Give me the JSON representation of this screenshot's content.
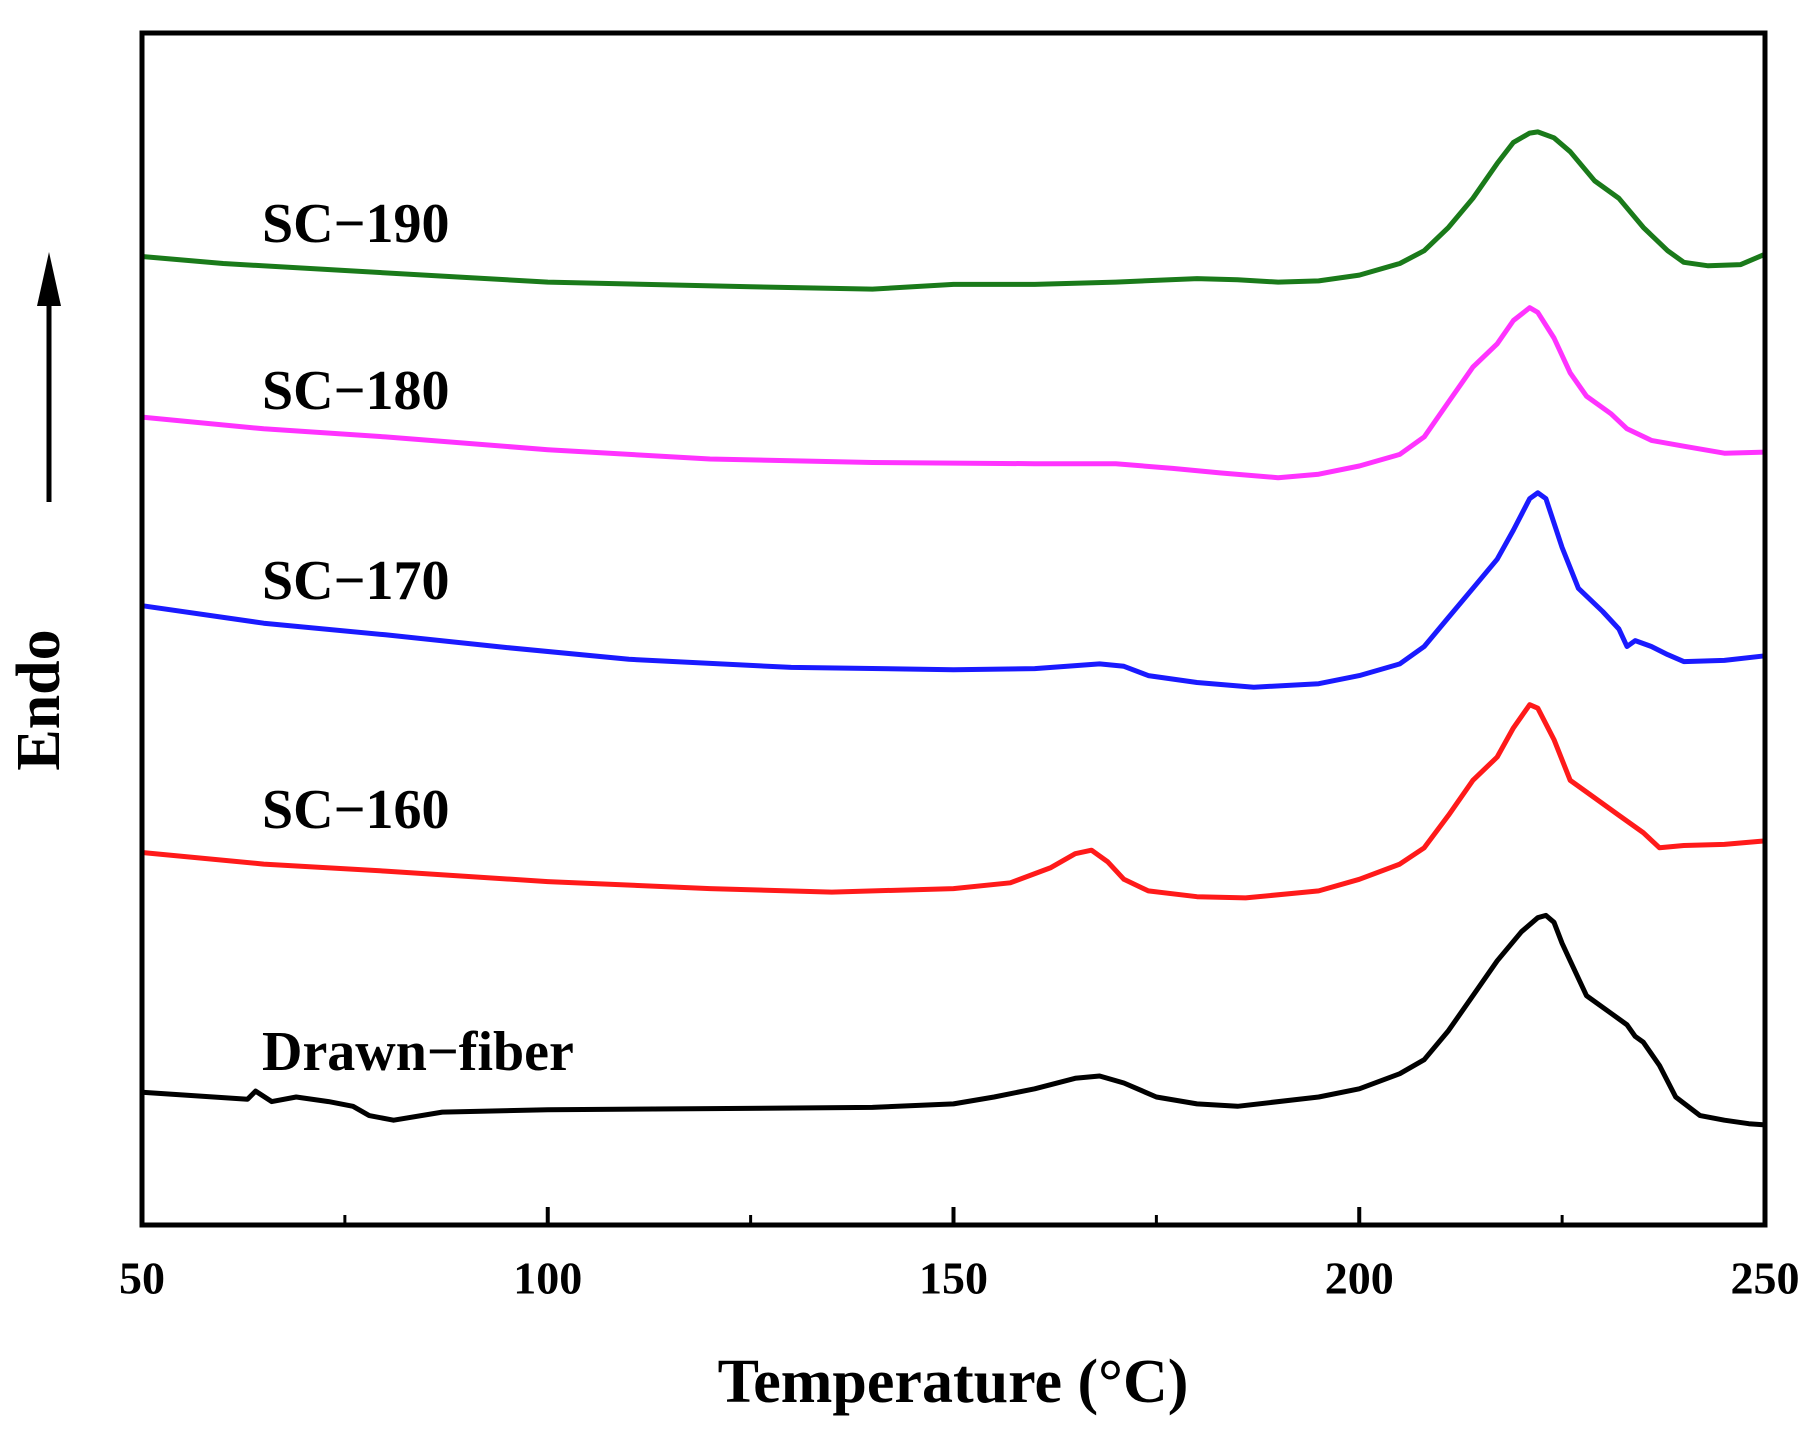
{
  "chart_data": {
    "type": "line",
    "x_label": "Temperature (°C)",
    "y_label": "Endo",
    "xlim": [
      50,
      250
    ],
    "xticks": [
      50,
      100,
      150,
      200,
      250
    ],
    "xminor_ticks": [
      75,
      125,
      175,
      225
    ],
    "ylim": [
      0,
      1024
    ],
    "series": [
      {
        "name": "SC−190",
        "color": "#1a7a1a",
        "x": [
          50,
          60,
          75,
          90,
          100,
          125,
          140,
          150,
          160,
          170,
          180,
          185,
          190,
          195,
          200,
          205,
          208,
          211,
          214,
          217,
          219,
          221,
          222,
          224,
          226,
          229,
          232,
          235,
          238,
          240,
          243,
          247,
          250
        ],
        "values": [
          832,
          826,
          820,
          814,
          810,
          806,
          804,
          808,
          808,
          810,
          813,
          812,
          810,
          811,
          816,
          826,
          837,
          857,
          882,
          912,
          930,
          938,
          939,
          934,
          922,
          897,
          882,
          857,
          837,
          827,
          824,
          825,
          834
        ]
      },
      {
        "name": "SC−180",
        "color": "#ff33ff",
        "x": [
          50,
          65,
          80,
          100,
          120,
          140,
          160,
          170,
          177,
          183,
          190,
          195,
          200,
          205,
          208,
          211,
          214,
          217,
          219,
          221,
          222,
          224,
          226,
          228,
          231,
          233,
          236,
          240,
          245,
          250
        ],
        "values": [
          694,
          684,
          677,
          666,
          658,
          655,
          654,
          654,
          650,
          646,
          642,
          645,
          652,
          662,
          677,
          707,
          737,
          757,
          777,
          788,
          784,
          762,
          732,
          712,
          697,
          684,
          674,
          669,
          663,
          664
        ]
      },
      {
        "name": "SC−170",
        "color": "#1a1aff",
        "x": [
          50,
          65,
          80,
          95,
          110,
          130,
          150,
          160,
          168,
          171,
          174,
          180,
          187,
          195,
          200,
          205,
          208,
          211,
          214,
          217,
          219,
          221,
          222,
          223,
          225,
          227,
          230,
          232,
          233,
          234,
          236,
          238,
          240,
          245,
          250
        ],
        "values": [
          532,
          517,
          507,
          496,
          486,
          479,
          477,
          478,
          482,
          480,
          472,
          466,
          462,
          465,
          472,
          482,
          497,
          522,
          547,
          572,
          597,
          624,
          629,
          624,
          582,
          547,
          527,
          512,
          497,
          502,
          497,
          490,
          484,
          485,
          489
        ]
      },
      {
        "name": "SC−160",
        "color": "#ff1a1a",
        "x": [
          50,
          65,
          80,
          100,
          120,
          135,
          150,
          157,
          162,
          165,
          167,
          169,
          171,
          174,
          180,
          186,
          195,
          200,
          205,
          208,
          211,
          214,
          217,
          219,
          221,
          222,
          224,
          226,
          229,
          232,
          235,
          237,
          240,
          245,
          250
        ],
        "values": [
          320,
          310,
          304,
          295,
          289,
          286,
          289,
          294,
          307,
          319,
          322,
          312,
          297,
          287,
          282,
          281,
          287,
          297,
          310,
          324,
          352,
          382,
          402,
          427,
          447,
          444,
          417,
          382,
          367,
          352,
          337,
          324,
          326,
          327,
          330
        ]
      },
      {
        "name": "Drawn−fiber",
        "color": "#000000",
        "x": [
          50,
          63,
          64,
          66,
          69,
          73,
          76,
          78,
          81,
          87,
          100,
          120,
          140,
          150,
          155,
          160,
          165,
          168,
          171,
          175,
          180,
          185,
          195,
          200,
          205,
          208,
          211,
          214,
          217,
          220,
          222,
          223,
          224,
          225,
          226,
          228,
          231,
          233,
          234,
          235,
          237,
          239,
          242,
          245,
          248,
          250
        ],
        "values": [
          114,
          108,
          115,
          106,
          110,
          106,
          102,
          94,
          90,
          97,
          99,
          100,
          101,
          104,
          110,
          117,
          126,
          128,
          122,
          110,
          104,
          102,
          110,
          117,
          130,
          142,
          167,
          197,
          227,
          252,
          264,
          266,
          260,
          242,
          227,
          197,
          182,
          172,
          162,
          157,
          137,
          110,
          94,
          90,
          87,
          86
        ]
      }
    ]
  }
}
